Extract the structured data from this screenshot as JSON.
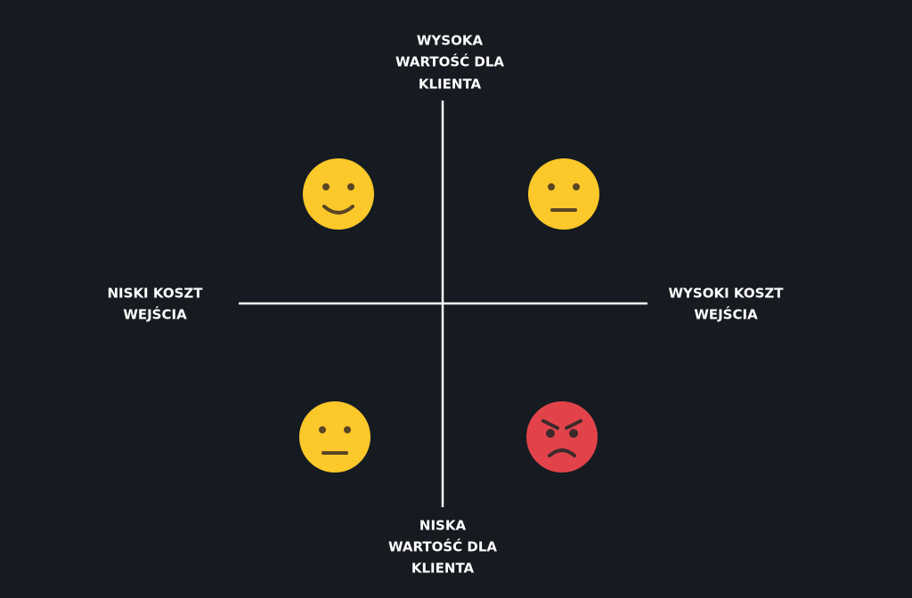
{
  "axes": {
    "top": [
      "WYSOKA",
      "WARTOŚĆ DLA",
      "KLIENTA"
    ],
    "left": [
      "NISKI KOSZT",
      "WEJŚCIA"
    ],
    "right": [
      "WYSOKI KOSZT",
      "WEJŚCIA"
    ],
    "bottom": [
      "NISKA",
      "WARTOŚĆ DLA",
      "KLIENTA"
    ]
  }
}
